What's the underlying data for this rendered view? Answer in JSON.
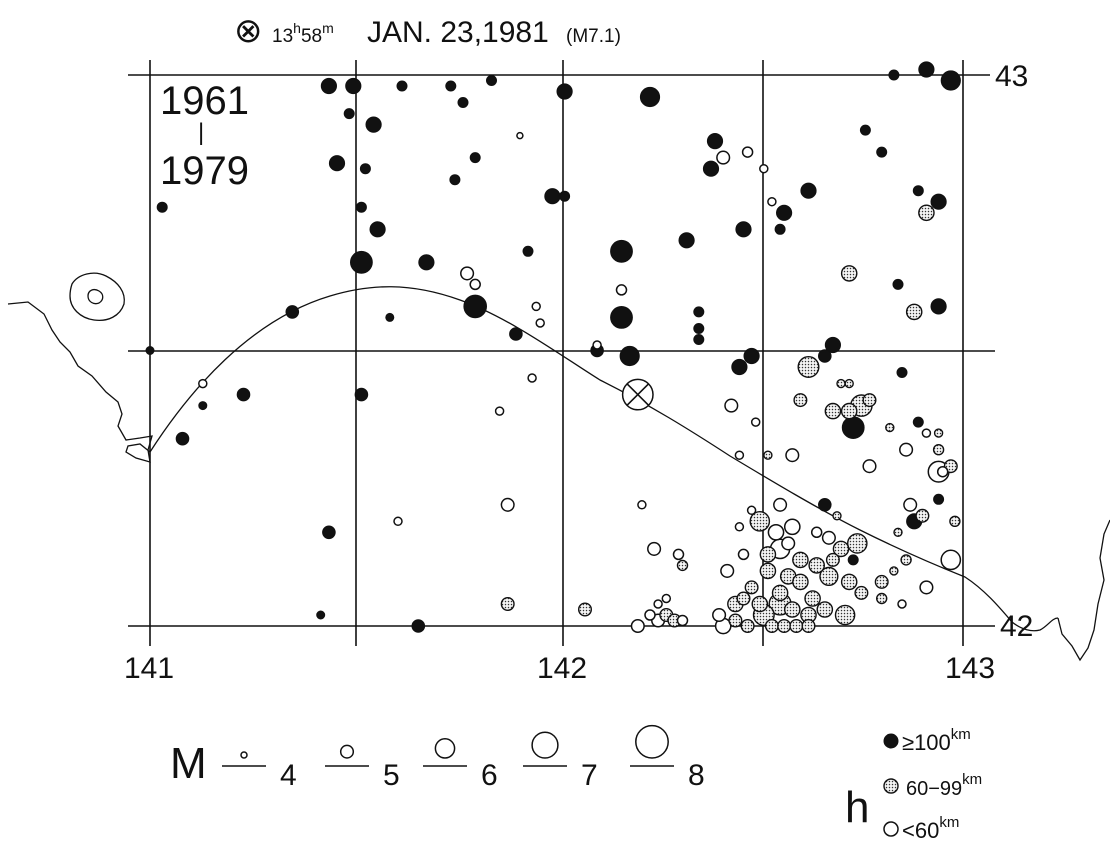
{
  "header": {
    "symbol": "⊗",
    "time_h": "13",
    "sup_h": "h",
    "time_m": "58",
    "sup_m": "m",
    "date": "JAN. 23,1981",
    "magnitude": "(M7.1)"
  },
  "period": {
    "start": "1961",
    "separator": "|",
    "end": "1979"
  },
  "axes": {
    "lon_labels": [
      "141",
      "142",
      "143"
    ],
    "lat_labels": [
      "43",
      "42"
    ]
  },
  "legend_magnitude": {
    "label": "M",
    "classes": [
      {
        "value": "4",
        "m": 4
      },
      {
        "value": "5",
        "m": 5
      },
      {
        "value": "6",
        "m": 6
      },
      {
        "value": "7",
        "m": 7
      },
      {
        "value": "8",
        "m": 8
      }
    ]
  },
  "legend_depth": {
    "label": "h",
    "classes": [
      {
        "text": "≥100",
        "unit": "km",
        "category": "deep"
      },
      {
        "text": "60−99",
        "unit": "km",
        "category": "mid"
      },
      {
        "text": "<60",
        "unit": "km",
        "category": "shallow"
      }
    ]
  },
  "mainshock": {
    "lon": 142.2,
    "lat": 42.42,
    "m": 7.1
  },
  "events": [
    {
      "lon": 141.44,
      "lat": 42.98,
      "m": 5.4,
      "d": "deep"
    },
    {
      "lon": 141.5,
      "lat": 42.98,
      "m": 5.4,
      "d": "deep"
    },
    {
      "lon": 141.62,
      "lat": 42.98,
      "m": 4.6,
      "d": "deep"
    },
    {
      "lon": 141.74,
      "lat": 42.98,
      "m": 4.6,
      "d": "deep"
    },
    {
      "lon": 141.84,
      "lat": 42.99,
      "m": 4.6,
      "d": "deep"
    },
    {
      "lon": 142.02,
      "lat": 42.97,
      "m": 5.4,
      "d": "deep"
    },
    {
      "lon": 142.23,
      "lat": 42.96,
      "m": 6.0,
      "d": "deep"
    },
    {
      "lon": 142.83,
      "lat": 43.0,
      "m": 4.6,
      "d": "deep"
    },
    {
      "lon": 142.91,
      "lat": 43.01,
      "m": 5.4,
      "d": "deep"
    },
    {
      "lon": 142.97,
      "lat": 42.99,
      "m": 6.0,
      "d": "deep"
    },
    {
      "lon": 141.49,
      "lat": 42.93,
      "m": 4.6,
      "d": "deep"
    },
    {
      "lon": 141.55,
      "lat": 42.91,
      "m": 5.4,
      "d": "deep"
    },
    {
      "lon": 141.77,
      "lat": 42.95,
      "m": 4.6,
      "d": "deep"
    },
    {
      "lon": 141.91,
      "lat": 42.89,
      "m": 4.0,
      "d": "shallow"
    },
    {
      "lon": 141.46,
      "lat": 42.84,
      "m": 5.4,
      "d": "deep"
    },
    {
      "lon": 141.53,
      "lat": 42.83,
      "m": 4.6,
      "d": "deep"
    },
    {
      "lon": 141.8,
      "lat": 42.85,
      "m": 4.6,
      "d": "deep"
    },
    {
      "lon": 141.75,
      "lat": 42.81,
      "m": 4.6,
      "d": "deep"
    },
    {
      "lon": 141.03,
      "lat": 42.76,
      "m": 4.6,
      "d": "deep"
    },
    {
      "lon": 141.52,
      "lat": 42.76,
      "m": 4.6,
      "d": "deep"
    },
    {
      "lon": 141.56,
      "lat": 42.72,
      "m": 5.4,
      "d": "deep"
    },
    {
      "lon": 141.99,
      "lat": 42.78,
      "m": 5.4,
      "d": "deep"
    },
    {
      "lon": 142.02,
      "lat": 42.78,
      "m": 4.6,
      "d": "deep"
    },
    {
      "lon": 141.52,
      "lat": 42.66,
      "m": 6.4,
      "d": "deep"
    },
    {
      "lon": 141.68,
      "lat": 42.66,
      "m": 5.4,
      "d": "deep"
    },
    {
      "lon": 141.93,
      "lat": 42.68,
      "m": 4.6,
      "d": "deep"
    },
    {
      "lon": 141.78,
      "lat": 42.64,
      "m": 5.0,
      "d": "shallow"
    },
    {
      "lon": 141.8,
      "lat": 42.62,
      "m": 4.6,
      "d": "shallow"
    },
    {
      "lon": 142.16,
      "lat": 42.68,
      "m": 6.4,
      "d": "deep"
    },
    {
      "lon": 142.32,
      "lat": 42.7,
      "m": 5.4,
      "d": "deep"
    },
    {
      "lon": 142.16,
      "lat": 42.61,
      "m": 4.6,
      "d": "shallow"
    },
    {
      "lon": 142.16,
      "lat": 42.56,
      "m": 6.4,
      "d": "deep"
    },
    {
      "lon": 142.39,
      "lat": 42.88,
      "m": 5.4,
      "d": "deep"
    },
    {
      "lon": 142.41,
      "lat": 42.85,
      "m": 5.0,
      "d": "shallow"
    },
    {
      "lon": 142.38,
      "lat": 42.83,
      "m": 5.4,
      "d": "deep"
    },
    {
      "lon": 142.47,
      "lat": 42.86,
      "m": 4.6,
      "d": "shallow"
    },
    {
      "lon": 142.51,
      "lat": 42.83,
      "m": 4.3,
      "d": "shallow"
    },
    {
      "lon": 142.62,
      "lat": 42.79,
      "m": 5.4,
      "d": "deep"
    },
    {
      "lon": 142.53,
      "lat": 42.77,
      "m": 4.3,
      "d": "shallow"
    },
    {
      "lon": 142.56,
      "lat": 42.75,
      "m": 5.4,
      "d": "deep"
    },
    {
      "lon": 142.55,
      "lat": 42.72,
      "m": 4.6,
      "d": "deep"
    },
    {
      "lon": 142.46,
      "lat": 42.72,
      "m": 5.4,
      "d": "deep"
    },
    {
      "lon": 142.76,
      "lat": 42.9,
      "m": 4.6,
      "d": "deep"
    },
    {
      "lon": 142.8,
      "lat": 42.86,
      "m": 4.6,
      "d": "deep"
    },
    {
      "lon": 142.89,
      "lat": 42.79,
      "m": 4.6,
      "d": "deep"
    },
    {
      "lon": 142.94,
      "lat": 42.77,
      "m": 5.4,
      "d": "deep"
    },
    {
      "lon": 142.91,
      "lat": 42.75,
      "m": 5.4,
      "d": "mid"
    },
    {
      "lon": 142.72,
      "lat": 42.64,
      "m": 5.4,
      "d": "mid"
    },
    {
      "lon": 142.84,
      "lat": 42.62,
      "m": 4.6,
      "d": "deep"
    },
    {
      "lon": 142.88,
      "lat": 42.57,
      "m": 5.4,
      "d": "mid"
    },
    {
      "lon": 142.94,
      "lat": 42.58,
      "m": 5.4,
      "d": "deep"
    },
    {
      "lon": 142.35,
      "lat": 42.57,
      "m": 4.6,
      "d": "deep"
    },
    {
      "lon": 142.35,
      "lat": 42.54,
      "m": 4.6,
      "d": "deep"
    },
    {
      "lon": 142.35,
      "lat": 42.52,
      "m": 4.6,
      "d": "deep"
    },
    {
      "lon": 142.48,
      "lat": 42.49,
      "m": 5.4,
      "d": "deep"
    },
    {
      "lon": 142.45,
      "lat": 42.47,
      "m": 5.4,
      "d": "deep"
    },
    {
      "lon": 142.68,
      "lat": 42.51,
      "m": 5.4,
      "d": "deep"
    },
    {
      "lon": 142.66,
      "lat": 42.49,
      "m": 5.0,
      "d": "deep"
    },
    {
      "lon": 142.62,
      "lat": 42.47,
      "m": 6.2,
      "d": "mid"
    },
    {
      "lon": 142.7,
      "lat": 42.44,
      "m": 4.3,
      "d": "mid"
    },
    {
      "lon": 142.72,
      "lat": 42.44,
      "m": 4.3,
      "d": "mid"
    },
    {
      "lon": 142.77,
      "lat": 42.41,
      "m": 5.0,
      "d": "mid"
    },
    {
      "lon": 142.85,
      "lat": 42.46,
      "m": 4.6,
      "d": "deep"
    },
    {
      "lon": 142.43,
      "lat": 42.4,
      "m": 5.0,
      "d": "shallow"
    },
    {
      "lon": 142.6,
      "lat": 42.41,
      "m": 5.0,
      "d": "mid"
    },
    {
      "lon": 142.68,
      "lat": 42.39,
      "m": 5.4,
      "d": "mid"
    },
    {
      "lon": 142.72,
      "lat": 42.39,
      "m": 5.4,
      "d": "mid"
    },
    {
      "lon": 142.75,
      "lat": 42.4,
      "m": 6.3,
      "d": "mid"
    },
    {
      "lon": 142.73,
      "lat": 42.36,
      "m": 6.4,
      "d": "deep"
    },
    {
      "lon": 142.49,
      "lat": 42.37,
      "m": 4.3,
      "d": "shallow"
    },
    {
      "lon": 142.82,
      "lat": 42.36,
      "m": 4.3,
      "d": "mid"
    },
    {
      "lon": 142.89,
      "lat": 42.37,
      "m": 4.6,
      "d": "deep"
    },
    {
      "lon": 142.91,
      "lat": 42.35,
      "m": 4.3,
      "d": "shallow"
    },
    {
      "lon": 142.94,
      "lat": 42.35,
      "m": 4.3,
      "d": "mid"
    },
    {
      "lon": 142.94,
      "lat": 42.32,
      "m": 4.6,
      "d": "mid"
    },
    {
      "lon": 142.86,
      "lat": 42.32,
      "m": 5.0,
      "d": "shallow"
    },
    {
      "lon": 142.77,
      "lat": 42.29,
      "m": 5.0,
      "d": "shallow"
    },
    {
      "lon": 142.94,
      "lat": 42.28,
      "m": 6.2,
      "d": "shallow"
    },
    {
      "lon": 142.97,
      "lat": 42.29,
      "m": 5.0,
      "d": "mid"
    },
    {
      "lon": 142.95,
      "lat": 42.28,
      "m": 4.6,
      "d": "shallow"
    },
    {
      "lon": 142.58,
      "lat": 42.31,
      "m": 5.0,
      "d": "shallow"
    },
    {
      "lon": 142.52,
      "lat": 42.31,
      "m": 4.3,
      "d": "mid"
    },
    {
      "lon": 142.45,
      "lat": 42.31,
      "m": 4.3,
      "d": "shallow"
    },
    {
      "lon": 142.94,
      "lat": 42.23,
      "m": 4.6,
      "d": "deep"
    },
    {
      "lon": 142.87,
      "lat": 42.22,
      "m": 5.0,
      "d": "shallow"
    },
    {
      "lon": 142.9,
      "lat": 42.2,
      "m": 5.0,
      "d": "mid"
    },
    {
      "lon": 142.88,
      "lat": 42.19,
      "m": 5.4,
      "d": "deep"
    },
    {
      "lon": 142.66,
      "lat": 42.22,
      "m": 5.0,
      "d": "deep"
    },
    {
      "lon": 142.55,
      "lat": 42.22,
      "m": 5.0,
      "d": "shallow"
    },
    {
      "lon": 142.48,
      "lat": 42.21,
      "m": 4.3,
      "d": "shallow"
    },
    {
      "lon": 142.5,
      "lat": 42.19,
      "m": 6.0,
      "d": "mid"
    },
    {
      "lon": 142.54,
      "lat": 42.17,
      "m": 5.4,
      "d": "shallow"
    },
    {
      "lon": 142.58,
      "lat": 42.18,
      "m": 5.4,
      "d": "shallow"
    },
    {
      "lon": 142.57,
      "lat": 42.15,
      "m": 5.0,
      "d": "shallow"
    },
    {
      "lon": 142.64,
      "lat": 42.17,
      "m": 4.6,
      "d": "shallow"
    },
    {
      "lon": 142.69,
      "lat": 42.2,
      "m": 4.3,
      "d": "mid"
    },
    {
      "lon": 142.67,
      "lat": 42.16,
      "m": 5.0,
      "d": "shallow"
    },
    {
      "lon": 142.45,
      "lat": 42.18,
      "m": 4.3,
      "d": "shallow"
    },
    {
      "lon": 142.98,
      "lat": 42.19,
      "m": 4.6,
      "d": "mid"
    },
    {
      "lon": 142.97,
      "lat": 42.12,
      "m": 6.0,
      "d": "shallow"
    },
    {
      "lon": 142.55,
      "lat": 42.14,
      "m": 6.0,
      "d": "shallow"
    },
    {
      "lon": 142.6,
      "lat": 42.12,
      "m": 5.4,
      "d": "mid"
    },
    {
      "lon": 142.64,
      "lat": 42.11,
      "m": 5.4,
      "d": "mid"
    },
    {
      "lon": 142.67,
      "lat": 42.09,
      "m": 5.8,
      "d": "mid"
    },
    {
      "lon": 142.52,
      "lat": 42.1,
      "m": 5.4,
      "d": "mid"
    },
    {
      "lon": 142.57,
      "lat": 42.09,
      "m": 5.4,
      "d": "mid"
    },
    {
      "lon": 142.6,
      "lat": 42.08,
      "m": 5.4,
      "d": "mid"
    },
    {
      "lon": 142.55,
      "lat": 42.06,
      "m": 5.4,
      "d": "mid"
    },
    {
      "lon": 142.63,
      "lat": 42.05,
      "m": 5.4,
      "d": "mid"
    },
    {
      "lon": 142.48,
      "lat": 42.07,
      "m": 5.0,
      "d": "mid"
    },
    {
      "lon": 142.46,
      "lat": 42.05,
      "m": 5.0,
      "d": "mid"
    },
    {
      "lon": 142.5,
      "lat": 42.04,
      "m": 5.4,
      "d": "mid"
    },
    {
      "lon": 142.44,
      "lat": 42.04,
      "m": 5.4,
      "d": "mid"
    },
    {
      "lon": 142.51,
      "lat": 42.02,
      "m": 6.2,
      "d": "mid"
    },
    {
      "lon": 142.58,
      "lat": 42.03,
      "m": 5.4,
      "d": "mid"
    },
    {
      "lon": 142.62,
      "lat": 42.02,
      "m": 5.4,
      "d": "mid"
    },
    {
      "lon": 142.66,
      "lat": 42.03,
      "m": 5.4,
      "d": "mid"
    },
    {
      "lon": 142.71,
      "lat": 42.02,
      "m": 6.0,
      "d": "mid"
    },
    {
      "lon": 142.75,
      "lat": 42.06,
      "m": 5.0,
      "d": "mid"
    },
    {
      "lon": 142.72,
      "lat": 42.08,
      "m": 5.4,
      "d": "mid"
    },
    {
      "lon": 142.7,
      "lat": 42.14,
      "m": 5.4,
      "d": "mid"
    },
    {
      "lon": 142.74,
      "lat": 42.15,
      "m": 6.0,
      "d": "mid"
    },
    {
      "lon": 142.68,
      "lat": 42.12,
      "m": 5.0,
      "d": "mid"
    },
    {
      "lon": 142.52,
      "lat": 42.13,
      "m": 5.4,
      "d": "mid"
    },
    {
      "lon": 142.46,
      "lat": 42.13,
      "m": 4.6,
      "d": "shallow"
    },
    {
      "lon": 142.42,
      "lat": 42.1,
      "m": 5.0,
      "d": "shallow"
    },
    {
      "lon": 142.4,
      "lat": 42.02,
      "m": 5.0,
      "d": "shallow"
    },
    {
      "lon": 142.41,
      "lat": 42.0,
      "m": 5.4,
      "d": "shallow"
    },
    {
      "lon": 142.44,
      "lat": 42.01,
      "m": 5.0,
      "d": "mid"
    },
    {
      "lon": 142.47,
      "lat": 42.0,
      "m": 5.0,
      "d": "mid"
    },
    {
      "lon": 142.53,
      "lat": 42.0,
      "m": 5.0,
      "d": "mid"
    },
    {
      "lon": 142.56,
      "lat": 42.0,
      "m": 5.0,
      "d": "mid"
    },
    {
      "lon": 142.59,
      "lat": 42.0,
      "m": 5.0,
      "d": "mid"
    },
    {
      "lon": 142.62,
      "lat": 42.0,
      "m": 5.0,
      "d": "mid"
    },
    {
      "lon": 142.55,
      "lat": 42.04,
      "m": 6.4,
      "d": "mid"
    },
    {
      "lon": 142.8,
      "lat": 42.08,
      "m": 5.0,
      "d": "mid"
    },
    {
      "lon": 142.83,
      "lat": 42.1,
      "m": 4.3,
      "d": "mid"
    },
    {
      "lon": 142.86,
      "lat": 42.12,
      "m": 4.6,
      "d": "mid"
    },
    {
      "lon": 142.84,
      "lat": 42.17,
      "m": 4.3,
      "d": "mid"
    },
    {
      "lon": 142.8,
      "lat": 42.05,
      "m": 4.6,
      "d": "mid"
    },
    {
      "lon": 142.85,
      "lat": 42.04,
      "m": 4.3,
      "d": "shallow"
    },
    {
      "lon": 142.91,
      "lat": 42.07,
      "m": 5.0,
      "d": "shallow"
    },
    {
      "lon": 142.73,
      "lat": 42.12,
      "m": 4.6,
      "d": "deep"
    },
    {
      "lon": 142.2,
      "lat": 42.0,
      "m": 5.0,
      "d": "shallow"
    },
    {
      "lon": 142.23,
      "lat": 42.02,
      "m": 4.6,
      "d": "shallow"
    },
    {
      "lon": 142.25,
      "lat": 42.01,
      "m": 5.0,
      "d": "shallow"
    },
    {
      "lon": 142.27,
      "lat": 42.02,
      "m": 5.0,
      "d": "mid"
    },
    {
      "lon": 142.29,
      "lat": 42.01,
      "m": 5.0,
      "d": "mid"
    },
    {
      "lon": 142.31,
      "lat": 42.01,
      "m": 4.6,
      "d": "shallow"
    },
    {
      "lon": 142.25,
      "lat": 42.04,
      "m": 4.3,
      "d": "shallow"
    },
    {
      "lon": 142.27,
      "lat": 42.05,
      "m": 4.3,
      "d": "shallow"
    },
    {
      "lon": 142.24,
      "lat": 42.14,
      "m": 5.0,
      "d": "shallow"
    },
    {
      "lon": 142.3,
      "lat": 42.13,
      "m": 4.6,
      "d": "shallow"
    },
    {
      "lon": 142.31,
      "lat": 42.11,
      "m": 4.6,
      "d": "mid"
    },
    {
      "lon": 142.21,
      "lat": 42.22,
      "m": 4.3,
      "d": "shallow"
    },
    {
      "lon": 142.07,
      "lat": 42.03,
      "m": 5.0,
      "d": "mid"
    },
    {
      "lon": 141.88,
      "lat": 42.04,
      "m": 5.0,
      "d": "mid"
    },
    {
      "lon": 141.88,
      "lat": 42.22,
      "m": 5.0,
      "d": "shallow"
    },
    {
      "lon": 141.61,
      "lat": 42.19,
      "m": 4.3,
      "d": "shallow"
    },
    {
      "lon": 141.44,
      "lat": 42.17,
      "m": 5.0,
      "d": "deep"
    },
    {
      "lon": 141.42,
      "lat": 42.02,
      "m": 4.3,
      "d": "deep"
    },
    {
      "lon": 141.66,
      "lat": 42.0,
      "m": 5.0,
      "d": "deep"
    },
    {
      "lon": 141.08,
      "lat": 42.34,
      "m": 5.0,
      "d": "deep"
    },
    {
      "lon": 141.13,
      "lat": 42.4,
      "m": 4.3,
      "d": "deep"
    },
    {
      "lon": 141.23,
      "lat": 42.42,
      "m": 5.0,
      "d": "deep"
    },
    {
      "lon": 141.13,
      "lat": 42.44,
      "m": 4.3,
      "d": "shallow"
    },
    {
      "lon": 141.52,
      "lat": 42.42,
      "m": 5.0,
      "d": "deep"
    },
    {
      "lon": 141.86,
      "lat": 42.39,
      "m": 4.3,
      "d": "shallow"
    },
    {
      "lon": 141.94,
      "lat": 42.45,
      "m": 4.3,
      "d": "shallow"
    },
    {
      "lon": 141.9,
      "lat": 42.53,
      "m": 5.0,
      "d": "deep"
    },
    {
      "lon": 141.35,
      "lat": 42.57,
      "m": 5.0,
      "d": "deep"
    },
    {
      "lon": 141.59,
      "lat": 42.56,
      "m": 4.3,
      "d": "deep"
    },
    {
      "lon": 141.8,
      "lat": 42.58,
      "m": 6.5,
      "d": "deep"
    },
    {
      "lon": 141.95,
      "lat": 42.58,
      "m": 4.3,
      "d": "shallow"
    },
    {
      "lon": 141.96,
      "lat": 42.55,
      "m": 4.3,
      "d": "shallow"
    },
    {
      "lon": 142.1,
      "lat": 42.5,
      "m": 5.0,
      "d": "deep"
    },
    {
      "lon": 142.1,
      "lat": 42.51,
      "m": 4.3,
      "d": "shallow"
    },
    {
      "lon": 141.0,
      "lat": 42.5,
      "m": 4.3,
      "d": "deep"
    },
    {
      "lon": 142.18,
      "lat": 42.49,
      "m": 6.0,
      "d": "deep"
    }
  ]
}
